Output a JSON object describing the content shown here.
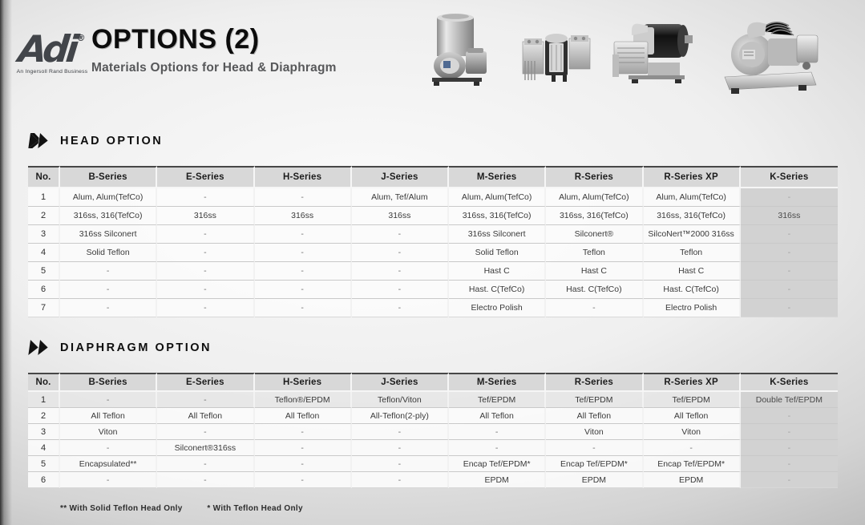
{
  "header": {
    "logo_text": "Adi",
    "logo_registered": "®",
    "logo_tagline": "An Ingersoll Rand Business",
    "title": "OPTIONS (2)",
    "subtitle": "Materials Options for Head & Diaphragm"
  },
  "product_images": [
    "canister-pump-image",
    "twin-head-pump-image",
    "motor-pump-image",
    "compressor-pump-image"
  ],
  "colors": {
    "table_header_gray": "#d8d8d8",
    "k_column_gray": "#d2d2d2",
    "title_black": "#0c0c0c",
    "subtitle_gray": "#57585a",
    "logo_charcoal": "#42454a"
  },
  "head_option": {
    "title": "HEAD OPTION",
    "columns": [
      "No.",
      "B-Series",
      "E-Series",
      "H-Series",
      "J-Series",
      "M-Series",
      "R-Series",
      "R-Series XP",
      "K-Series"
    ],
    "rows": [
      [
        "1",
        "Alum, Alum(TefCo)",
        "-",
        "-",
        "Alum, Tef/Alum",
        "Alum, Alum(TefCo)",
        "Alum, Alum(TefCo)",
        "Alum, Alum(TefCo)",
        "-"
      ],
      [
        "2",
        "316ss, 316(TefCo)",
        "316ss",
        "316ss",
        "316ss",
        "316ss, 316(TefCo)",
        "316ss, 316(TefCo)",
        "316ss, 316(TefCo)",
        "316ss"
      ],
      [
        "3",
        "316ss Silconert",
        "-",
        "-",
        "-",
        "316ss Silconert",
        "Silconert®",
        "SilcoNert™2000 316ss",
        "-"
      ],
      [
        "4",
        "Solid Teflon",
        "-",
        "-",
        "-",
        "Solid Teflon",
        "Teflon",
        "Teflon",
        "-"
      ],
      [
        "5",
        "-",
        "-",
        "-",
        "-",
        "Hast C",
        "Hast C",
        "Hast C",
        "-"
      ],
      [
        "6",
        "-",
        "-",
        "-",
        "-",
        "Hast. C(TefCo)",
        "Hast. C(TefCo)",
        "Hast. C(TefCo)",
        "-"
      ],
      [
        "7",
        "-",
        "-",
        "-",
        "-",
        "Electro Polish",
        "-",
        "Electro Polish",
        "-"
      ]
    ]
  },
  "diaphragm_option": {
    "title": "DIAPHRAGM OPTION",
    "columns": [
      "No.",
      "B-Series",
      "E-Series",
      "H-Series",
      "J-Series",
      "M-Series",
      "R-Series",
      "R-Series XP",
      "K-Series"
    ],
    "rows": [
      [
        "1",
        "-",
        "-",
        "Teflon®/EPDM",
        "Teflon/Viton",
        "Tef/EPDM",
        "Tef/EPDM",
        "Tef/EPDM",
        "Double Tef/EPDM"
      ],
      [
        "2",
        "All Teflon",
        "All Teflon",
        "All Teflon",
        "All-Teflon(2-ply)",
        "All Teflon",
        "All Teflon",
        "All Teflon",
        "-"
      ],
      [
        "3",
        "Viton",
        "-",
        "-",
        "-",
        "-",
        "Viton",
        "Viton",
        "-"
      ],
      [
        "4",
        "-",
        "Silconert®316ss",
        "-",
        "-",
        "-",
        "-",
        "-",
        "-"
      ],
      [
        "5",
        "Encapsulated**",
        "-",
        "-",
        "-",
        "Encap Tef/EPDM*",
        "Encap Tef/EPDM*",
        "Encap Tef/EPDM*",
        "-"
      ],
      [
        "6",
        "-",
        "-",
        "-",
        "-",
        "EPDM",
        "EPDM",
        "EPDM",
        "-"
      ]
    ]
  },
  "footnote": {
    "part1": "** With Solid Teflon Head Only",
    "part2": "* With Teflon Head Only"
  }
}
